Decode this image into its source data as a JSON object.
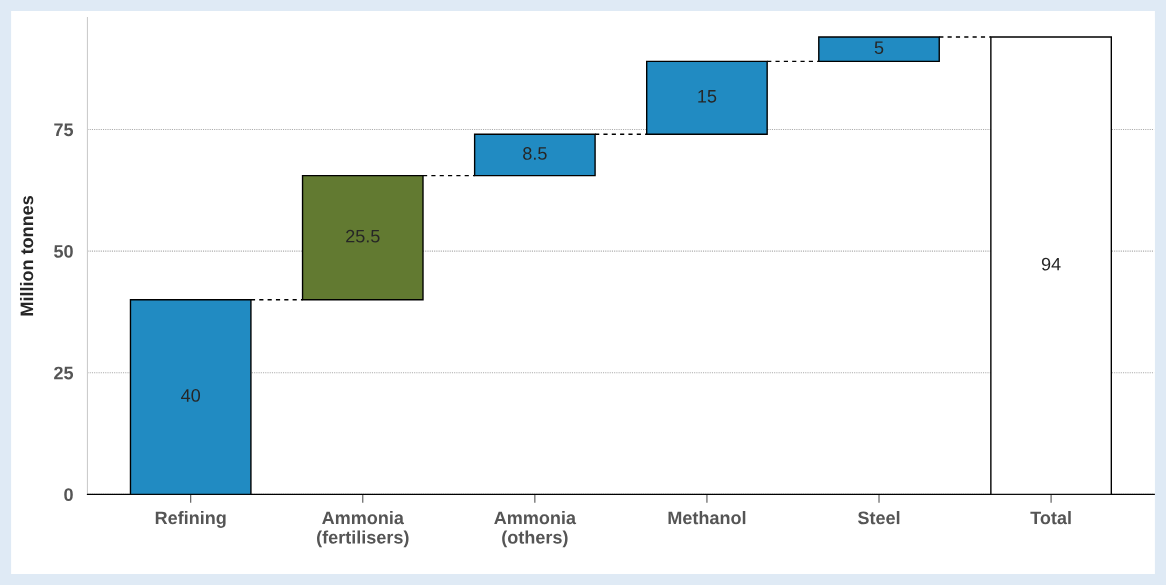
{
  "chart_data": {
    "type": "bar",
    "ylabel": "Million tonnes",
    "categories": [
      "Refining",
      "Ammonia\n(fertilisers)",
      "Ammonia\n(others)",
      "Methanol",
      "Steel",
      "Total"
    ],
    "values": [
      40,
      25.5,
      8.5,
      15,
      5,
      94
    ],
    "base": [
      0,
      40,
      65.5,
      74,
      89,
      0
    ],
    "colors": [
      "#218bc2",
      "#627a31",
      "#218bc2",
      "#218bc2",
      "#218bc2",
      "#ffffff"
    ],
    "data_labels": true,
    "ylim": [
      0,
      98
    ],
    "yticks": [
      0,
      25,
      50,
      75
    ],
    "grid": "y",
    "legend": false
  }
}
